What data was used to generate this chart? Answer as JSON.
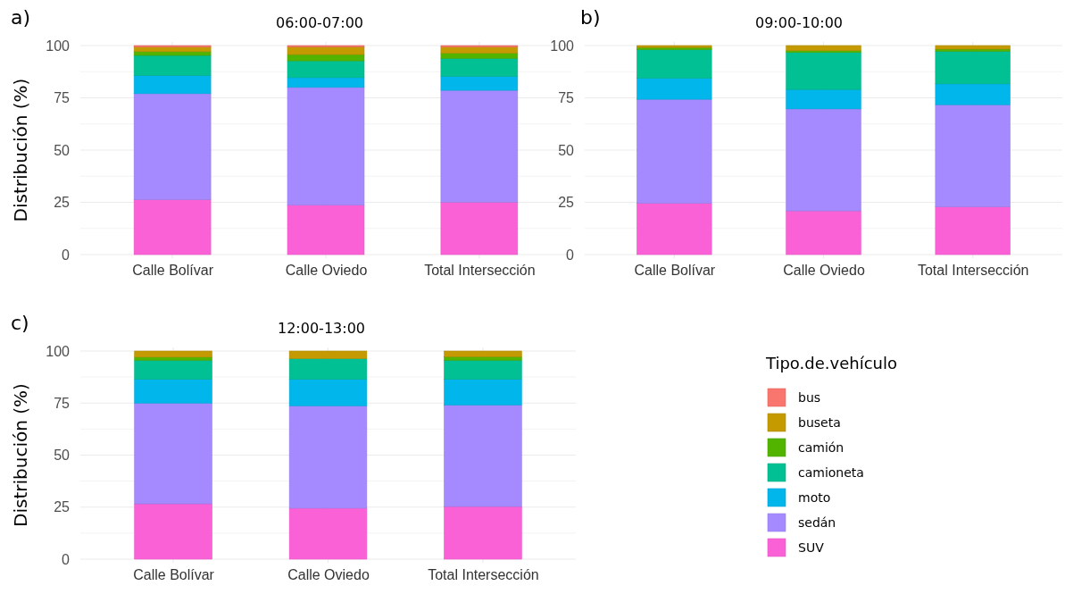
{
  "chart_data": [
    {
      "type": "bar",
      "stacked": true,
      "title": "06:00-07:00",
      "ylabel": "Distribución (%)",
      "annotations": [
        "a)"
      ],
      "categories": [
        "Calle Bolívar",
        "Calle Oviedo",
        "Total Intersección"
      ],
      "ylim": [
        0,
        100
      ],
      "yticks": [
        0,
        {
          "value": 12.5,
          "label": null
        },
        25,
        {
          "value": 37.5,
          "label": null
        },
        50,
        {
          "value": 62.5,
          "label": null
        },
        75,
        {
          "value": 87.5,
          "label": null
        },
        100
      ],
      "grid": true,
      "legend": false,
      "series": [
        {
          "color": "#fb61d7",
          "values": [
            26.3,
            23.7,
            25.1
          ]
        },
        {
          "color": "#a58aff",
          "values": [
            50.7,
            56.3,
            53.5
          ]
        },
        {
          "color": "#00b6eb",
          "values": [
            8.7,
            4.7,
            6.7
          ]
        },
        {
          "color": "#00c094",
          "values": [
            9.6,
            8.0,
            8.6
          ]
        },
        {
          "color": "#53b400",
          "values": [
            1.8,
            3.0,
            2.5
          ]
        },
        {
          "color": "#c49a00",
          "values": [
            2.2,
            3.7,
            2.9
          ]
        },
        {
          "color": "#f8766d",
          "values": [
            0.7,
            0.6,
            0.7
          ]
        }
      ]
    },
    {
      "type": "bar",
      "stacked": true,
      "title": "09:00-10:00",
      "annotations": [
        "b)"
      ],
      "categories": [
        "Calle Bolívar",
        "Calle Oviedo",
        "Total Intersección"
      ],
      "ylim": [
        0,
        100
      ],
      "yticks": [
        0,
        {
          "value": 12.5,
          "label": null
        },
        25,
        {
          "value": 37.5,
          "label": null
        },
        50,
        {
          "value": 62.5,
          "label": null
        },
        75,
        {
          "value": 87.5,
          "label": null
        },
        100
      ],
      "grid": true,
      "legend": false,
      "series": [
        {
          "color": "#fb61d7",
          "values": [
            24.6,
            20.9,
            22.9
          ]
        },
        {
          "color": "#a58aff",
          "values": [
            49.7,
            48.8,
            48.8
          ]
        },
        {
          "color": "#00b6eb",
          "values": [
            10.1,
            9.3,
            10.0
          ]
        },
        {
          "color": "#00c094",
          "values": [
            13.7,
            17.7,
            15.6
          ]
        },
        {
          "color": "#53b400",
          "values": [
            1.0,
            0.9,
            1.0
          ]
        },
        {
          "color": "#c49a00",
          "values": [
            0.9,
            2.4,
            1.7
          ]
        },
        {
          "color": "#f8766d",
          "values": [
            0,
            0,
            0
          ]
        }
      ]
    },
    {
      "type": "bar",
      "stacked": true,
      "title": "12:00-13:00",
      "ylabel": "Distribución (%)",
      "annotations": [
        "c)"
      ],
      "categories": [
        "Calle Bolívar",
        "Calle Oviedo",
        "Total Intersección"
      ],
      "ylim": [
        0,
        100
      ],
      "yticks": [
        0,
        {
          "value": 12.5,
          "label": null
        },
        25,
        {
          "value": 37.5,
          "label": null
        },
        50,
        {
          "value": 62.5,
          "label": null
        },
        75,
        {
          "value": 87.5,
          "label": null
        },
        100
      ],
      "grid": true,
      "legend": "right",
      "legend_title": "Tipo.de.vehículo",
      "series": [
        {
          "name": "SUV",
          "color": "#fb61d7",
          "values": [
            26.6,
            24.5,
            25.3
          ]
        },
        {
          "name": "sedán",
          "color": "#a58aff",
          "values": [
            48.4,
            49.2,
            48.8
          ]
        },
        {
          "name": "moto",
          "color": "#00b6eb",
          "values": [
            11.4,
            12.7,
            12.3
          ]
        },
        {
          "name": "camioneta",
          "color": "#00c094",
          "values": [
            9.2,
            10.0,
            9.2
          ]
        },
        {
          "name": "camión",
          "color": "#53b400",
          "values": [
            1.5,
            0,
            1.7
          ]
        },
        {
          "name": "buseta",
          "color": "#c49a00",
          "values": [
            2.9,
            3.6,
            2.7
          ]
        },
        {
          "name": "bus",
          "color": "#f8766d",
          "values": [
            0,
            0,
            0
          ]
        }
      ]
    }
  ]
}
